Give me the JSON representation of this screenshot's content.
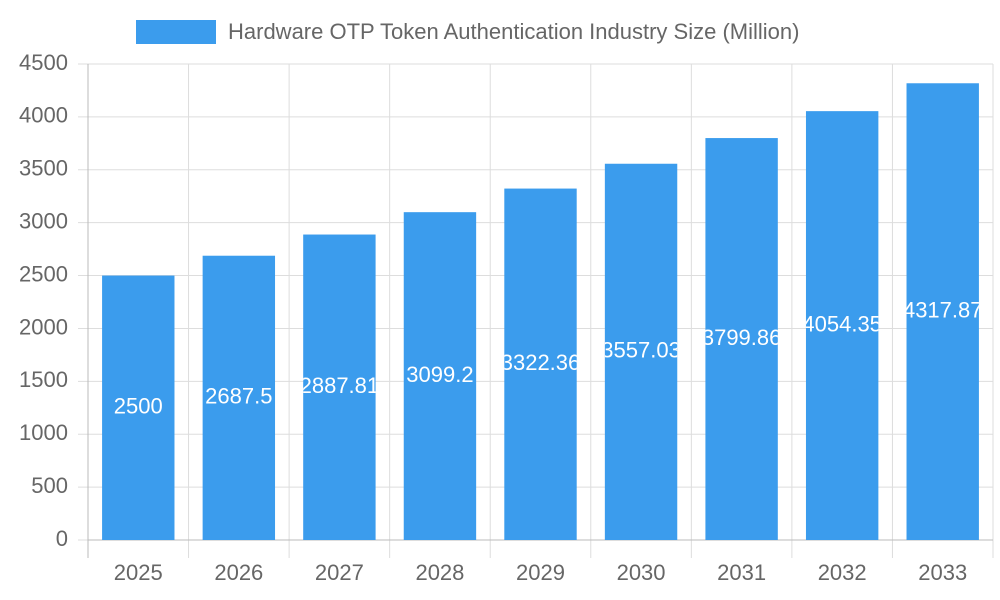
{
  "chart_data": {
    "type": "bar",
    "categories": [
      "2025",
      "2026",
      "2027",
      "2028",
      "2029",
      "2030",
      "2031",
      "2032",
      "2033"
    ],
    "series": [
      {
        "name": "Hardware OTP Token Authentication Industry Size (Million)",
        "color": "#3b9ced",
        "values": [
          2500,
          2687.5,
          2887.81,
          3099.2,
          3322.36,
          3557.03,
          3799.86,
          4054.35,
          4317.87
        ]
      }
    ],
    "ylim": [
      0,
      4500
    ],
    "yticks": [
      0,
      500,
      1000,
      1500,
      2000,
      2500,
      3000,
      3500,
      4000,
      4500
    ],
    "grid": true
  }
}
